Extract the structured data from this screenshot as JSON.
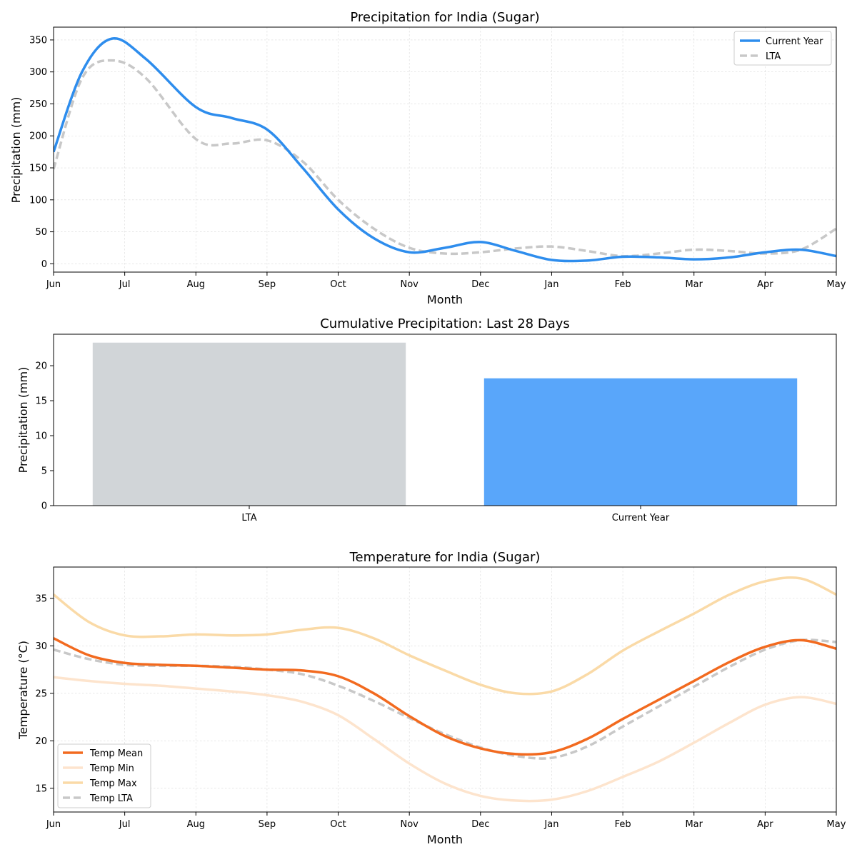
{
  "colors": {
    "current_year": "#2e8ded",
    "lta": "#c8c8c8",
    "bar_lta": "#d1d5d8",
    "bar_current": "#59a6fa",
    "temp_mean": "#f26a1f",
    "temp_min": "#fde4cd",
    "temp_max": "#fadaa7",
    "temp_lta": "#c8c8c8"
  },
  "chart_data": [
    {
      "type": "line",
      "title": "Precipitation for India (Sugar)",
      "xlabel": "Month",
      "ylabel": "Precipitation (mm)",
      "xlim": [
        0,
        11
      ],
      "ylim": [
        -13,
        370
      ],
      "x_ticks": [
        "Jun",
        "Jul",
        "Aug",
        "Sep",
        "Oct",
        "Nov",
        "Dec",
        "Jan",
        "Feb",
        "Mar",
        "Apr",
        "May"
      ],
      "y_ticks": [
        0,
        50,
        100,
        150,
        200,
        250,
        300,
        350
      ],
      "grid": true,
      "legend": "top-right",
      "series": [
        {
          "name": "Current Year",
          "style": "solid",
          "points": [
            [
              0,
              175
            ],
            [
              0.4,
              300
            ],
            [
              0.82,
              352
            ],
            [
              1.3,
              320
            ],
            [
              2,
              245
            ],
            [
              2.5,
              228
            ],
            [
              3,
              210
            ],
            [
              3.5,
              150
            ],
            [
              4,
              85
            ],
            [
              4.5,
              40
            ],
            [
              5,
              18
            ],
            [
              5.5,
              25
            ],
            [
              6,
              34
            ],
            [
              6.5,
              20
            ],
            [
              7,
              6
            ],
            [
              7.5,
              5
            ],
            [
              8,
              11
            ],
            [
              8.5,
              10
            ],
            [
              9,
              7
            ],
            [
              9.5,
              10
            ],
            [
              10,
              18
            ],
            [
              10.5,
              22
            ],
            [
              11,
              12
            ]
          ]
        },
        {
          "name": "LTA",
          "style": "dashed",
          "points": [
            [
              0,
              148
            ],
            [
              0.4,
              290
            ],
            [
              0.82,
              318
            ],
            [
              1.3,
              290
            ],
            [
              2,
              195
            ],
            [
              2.5,
              188
            ],
            [
              3,
              193
            ],
            [
              3.5,
              160
            ],
            [
              4,
              100
            ],
            [
              4.5,
              55
            ],
            [
              5,
              25
            ],
            [
              5.5,
              16
            ],
            [
              6,
              18
            ],
            [
              6.5,
              24
            ],
            [
              7,
              27
            ],
            [
              7.5,
              20
            ],
            [
              8,
              12
            ],
            [
              8.5,
              16
            ],
            [
              9,
              22
            ],
            [
              9.5,
              20
            ],
            [
              10,
              16
            ],
            [
              10.5,
              22
            ],
            [
              11,
              55
            ]
          ]
        }
      ]
    },
    {
      "type": "bar",
      "title": "Cumulative Precipitation: Last 28 Days",
      "xlabel": "",
      "ylabel": "Precipitation (mm)",
      "ylim": [
        0,
        24.5
      ],
      "y_ticks": [
        0,
        5,
        10,
        15,
        20
      ],
      "categories": [
        "LTA",
        "Current Year"
      ],
      "values": [
        23.3,
        18.2
      ]
    },
    {
      "type": "line",
      "title": "Temperature for India (Sugar)",
      "xlabel": "Month",
      "ylabel": "Temperature (°C)",
      "xlim": [
        0,
        11
      ],
      "ylim": [
        12.5,
        38.3
      ],
      "x_ticks": [
        "Jun",
        "Jul",
        "Aug",
        "Sep",
        "Oct",
        "Nov",
        "Dec",
        "Jan",
        "Feb",
        "Mar",
        "Apr",
        "May"
      ],
      "y_ticks": [
        15,
        20,
        25,
        30,
        35
      ],
      "grid": true,
      "legend": "lower-left",
      "series": [
        {
          "name": "Temp Mean",
          "style": "solid",
          "points": [
            [
              0,
              30.8
            ],
            [
              0.5,
              29.0
            ],
            [
              1,
              28.2
            ],
            [
              1.5,
              28.0
            ],
            [
              2,
              27.9
            ],
            [
              2.5,
              27.7
            ],
            [
              3,
              27.5
            ],
            [
              3.5,
              27.4
            ],
            [
              4,
              26.8
            ],
            [
              4.5,
              25.0
            ],
            [
              5,
              22.6
            ],
            [
              5.5,
              20.5
            ],
            [
              6,
              19.2
            ],
            [
              6.5,
              18.6
            ],
            [
              7,
              18.8
            ],
            [
              7.5,
              20.2
            ],
            [
              8,
              22.3
            ],
            [
              8.5,
              24.3
            ],
            [
              9,
              26.3
            ],
            [
              9.5,
              28.3
            ],
            [
              10,
              29.9
            ],
            [
              10.5,
              30.6
            ],
            [
              11,
              29.7
            ]
          ]
        },
        {
          "name": "Temp Min",
          "style": "solid",
          "points": [
            [
              0,
              26.7
            ],
            [
              0.5,
              26.3
            ],
            [
              1,
              26.0
            ],
            [
              1.5,
              25.8
            ],
            [
              2,
              25.5
            ],
            [
              2.5,
              25.2
            ],
            [
              3,
              24.8
            ],
            [
              3.5,
              24.1
            ],
            [
              4,
              22.7
            ],
            [
              4.5,
              20.2
            ],
            [
              5,
              17.6
            ],
            [
              5.5,
              15.5
            ],
            [
              6,
              14.2
            ],
            [
              6.5,
              13.7
            ],
            [
              7,
              13.8
            ],
            [
              7.5,
              14.7
            ],
            [
              8,
              16.2
            ],
            [
              8.5,
              17.8
            ],
            [
              9,
              19.8
            ],
            [
              9.5,
              21.9
            ],
            [
              10,
              23.8
            ],
            [
              10.5,
              24.6
            ],
            [
              11,
              23.9
            ]
          ]
        },
        {
          "name": "Temp Max",
          "style": "solid",
          "points": [
            [
              0,
              35.4
            ],
            [
              0.5,
              32.5
            ],
            [
              1,
              31.1
            ],
            [
              1.5,
              31.0
            ],
            [
              2,
              31.2
            ],
            [
              2.5,
              31.1
            ],
            [
              3,
              31.2
            ],
            [
              3.5,
              31.7
            ],
            [
              4,
              31.9
            ],
            [
              4.5,
              30.8
            ],
            [
              5,
              29.0
            ],
            [
              5.5,
              27.4
            ],
            [
              6,
              25.9
            ],
            [
              6.5,
              25.0
            ],
            [
              7,
              25.2
            ],
            [
              7.5,
              27.0
            ],
            [
              8,
              29.5
            ],
            [
              8.5,
              31.5
            ],
            [
              9,
              33.4
            ],
            [
              9.5,
              35.4
            ],
            [
              10,
              36.8
            ],
            [
              10.5,
              37.1
            ],
            [
              11,
              35.4
            ]
          ]
        },
        {
          "name": "Temp LTA",
          "style": "dashed",
          "points": [
            [
              0,
              29.6
            ],
            [
              0.5,
              28.6
            ],
            [
              1,
              28.0
            ],
            [
              1.5,
              27.9
            ],
            [
              2,
              27.9
            ],
            [
              2.5,
              27.8
            ],
            [
              3,
              27.5
            ],
            [
              3.5,
              27.0
            ],
            [
              4,
              25.8
            ],
            [
              4.5,
              24.2
            ],
            [
              5,
              22.4
            ],
            [
              5.5,
              20.7
            ],
            [
              6,
              19.3
            ],
            [
              6.5,
              18.4
            ],
            [
              7,
              18.2
            ],
            [
              7.5,
              19.4
            ],
            [
              8,
              21.5
            ],
            [
              8.5,
              23.6
            ],
            [
              9,
              25.7
            ],
            [
              9.5,
              27.8
            ],
            [
              10,
              29.6
            ],
            [
              10.5,
              30.6
            ],
            [
              11,
              30.4
            ]
          ]
        }
      ]
    }
  ]
}
